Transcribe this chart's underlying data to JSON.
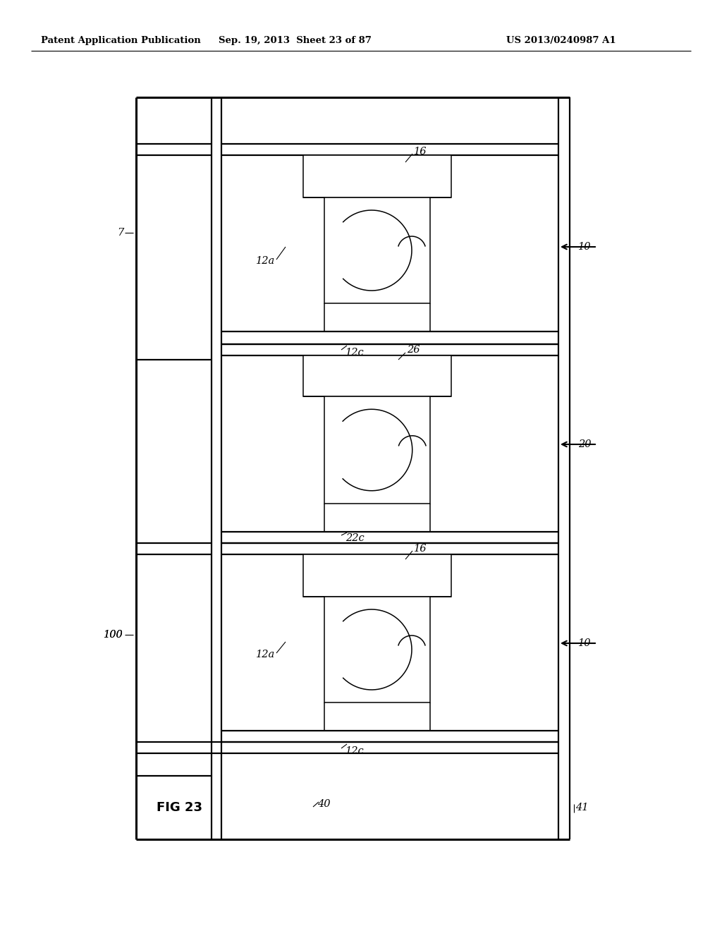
{
  "bg_color": "#ffffff",
  "line_color": "#000000",
  "header_left": "Patent Application Publication",
  "header_mid": "Sep. 19, 2013  Sheet 23 of 87",
  "header_right": "US 2013/0240987 A1",
  "fig_label": "FIG 23",
  "label_100": "100",
  "label_7": "7",
  "label_10a": "10",
  "label_10b": "10",
  "label_12a_a": "12a",
  "label_12a_b": "12a",
  "label_12c_a": "12c",
  "label_12c_b": "12c",
  "label_16a": "16",
  "label_16b": "16",
  "label_20": "20",
  "label_22c": "22c",
  "label_26": "26",
  "label_40": "40",
  "label_41": "41"
}
